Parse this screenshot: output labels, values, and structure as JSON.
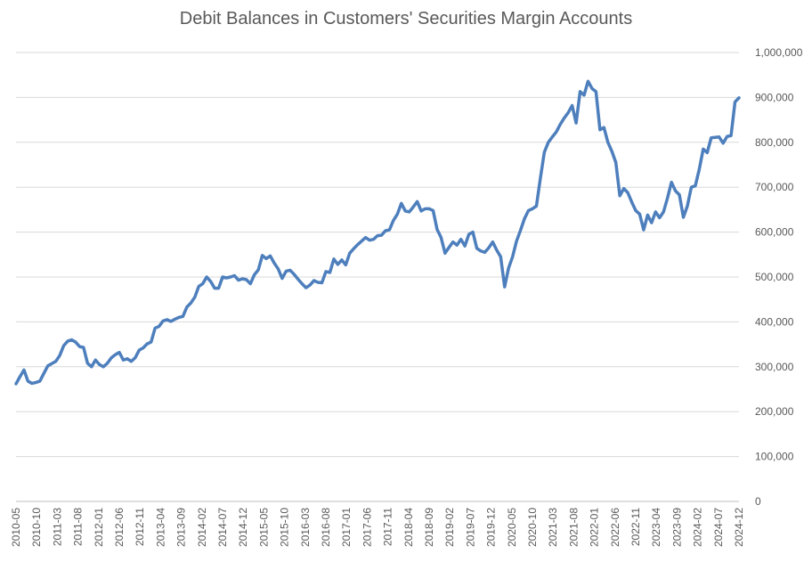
{
  "chart_data": {
    "type": "line",
    "title": "Debit Balances in Customers' Securities Margin Accounts",
    "xlabel": "",
    "ylabel": "",
    "ylim": [
      0,
      1000000
    ],
    "yticks": [
      "0",
      "100,000",
      "200,000",
      "300,000",
      "400,000",
      "500,000",
      "600,000",
      "700,000",
      "800,000",
      "900,000",
      "1,000,000"
    ],
    "y_axis_position": "right",
    "grid": true,
    "legend": "none",
    "xtick_labels": [
      "2010-05",
      "2010-10",
      "2011-03",
      "2011-08",
      "2012-01",
      "2012-06",
      "2012-11",
      "2013-04",
      "2013-09",
      "2014-02",
      "2014-07",
      "2014-12",
      "2015-05",
      "2015-10",
      "2016-03",
      "2016-08",
      "2017-01",
      "2017-06",
      "2017-11",
      "2018-04",
      "2018-09",
      "2019-02",
      "2019-07",
      "2019-12",
      "2020-05",
      "2020-10",
      "2021-03",
      "2021-08",
      "2022-01",
      "2022-06",
      "2022-11",
      "2023-04",
      "2023-09",
      "2024-02",
      "2024-07",
      "2024-12"
    ],
    "series": [
      {
        "color": "#4e7fbd",
        "start": "2010-05",
        "end": "2024-12",
        "values": [
          262000,
          278000,
          293000,
          268000,
          263000,
          265000,
          268000,
          285000,
          302000,
          307000,
          312000,
          325000,
          347000,
          357000,
          360000,
          355000,
          345000,
          343000,
          308000,
          300000,
          315000,
          305000,
          300000,
          308000,
          320000,
          327000,
          332000,
          315000,
          318000,
          312000,
          320000,
          337000,
          342000,
          351000,
          355000,
          386000,
          390000,
          402000,
          405000,
          401000,
          406000,
          410000,
          412000,
          433000,
          442000,
          455000,
          479000,
          485000,
          500000,
          490000,
          475000,
          475000,
          500000,
          498000,
          500000,
          503000,
          493000,
          496000,
          494000,
          485000,
          505000,
          516000,
          548000,
          541000,
          547000,
          531000,
          518000,
          497000,
          513000,
          515000,
          506000,
          495000,
          485000,
          476000,
          482000,
          492000,
          488000,
          487000,
          512000,
          510000,
          540000,
          528000,
          538000,
          527000,
          553000,
          563000,
          572000,
          580000,
          588000,
          582000,
          584000,
          592000,
          593000,
          603000,
          605000,
          626000,
          640000,
          664000,
          647000,
          645000,
          656000,
          668000,
          647000,
          652000,
          652000,
          648000,
          606000,
          588000,
          553000,
          566000,
          578000,
          571000,
          584000,
          569000,
          595000,
          600000,
          564000,
          558000,
          555000,
          565000,
          578000,
          560000,
          545000,
          478000,
          520000,
          545000,
          580000,
          604000,
          630000,
          648000,
          652000,
          658000,
          720000,
          778000,
          800000,
          812000,
          823000,
          840000,
          854000,
          866000,
          882000,
          843000,
          913000,
          905000,
          936000,
          920000,
          913000,
          828000,
          833000,
          800000,
          780000,
          755000,
          681000,
          697000,
          688000,
          667000,
          648000,
          640000,
          605000,
          638000,
          621000,
          645000,
          632000,
          645000,
          676000,
          711000,
          692000,
          683000,
          633000,
          658000,
          700000,
          703000,
          740000,
          785000,
          777000,
          810000,
          811000,
          812000,
          798000,
          813000,
          815000,
          890000,
          899000
        ]
      }
    ]
  }
}
